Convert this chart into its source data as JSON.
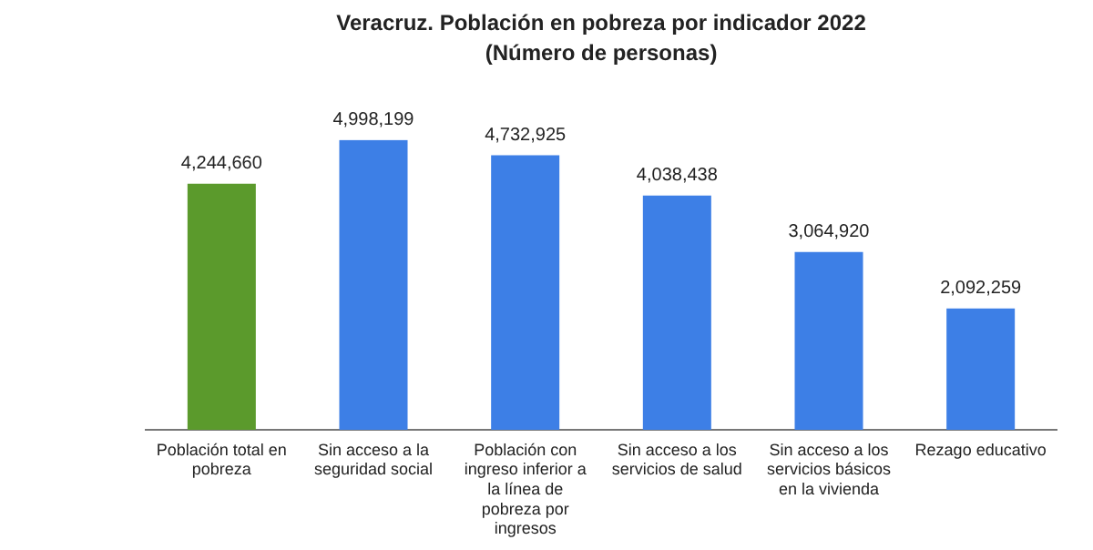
{
  "chart_data": {
    "type": "bar",
    "title": "Veracruz. Población en pobreza por indicador 2022",
    "subtitle": "(Número de personas)",
    "categories": [
      "Población total en pobreza",
      "Sin acceso a la seguridad social",
      "Población con ingreso inferior a la línea de pobreza por ingresos",
      "Sin acceso a los servicios de salud",
      "Sin acceso a los servicios básicos en la vivienda",
      "Rezago educativo"
    ],
    "values": [
      4244660,
      4998199,
      4732925,
      4038438,
      3064920,
      2092259
    ],
    "colors": [
      "#5b9a2c",
      "#3d7fe6",
      "#3d7fe6",
      "#3d7fe6",
      "#3d7fe6",
      "#3d7fe6"
    ],
    "value_labels": [
      "4,244,660",
      "4,998,199",
      "4,732,925",
      "4,038,438",
      "3,064,920",
      "2,092,259"
    ],
    "tick_labels": "x",
    "grid": false,
    "legend": false
  }
}
